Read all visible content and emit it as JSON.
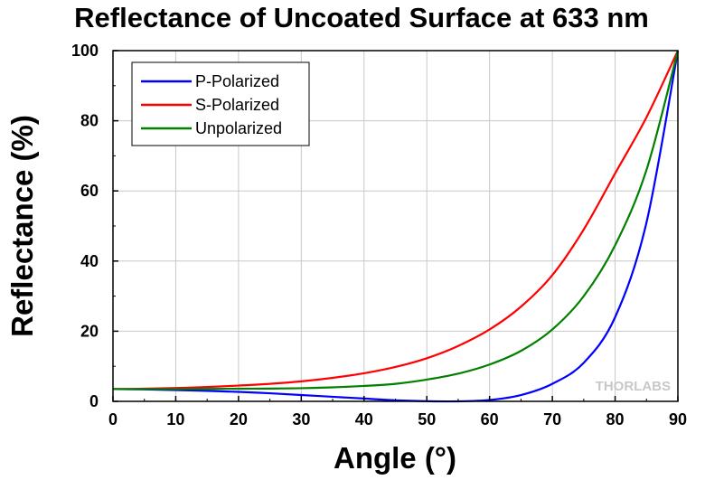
{
  "chart_data": {
    "type": "line",
    "title": "Reflectance of Uncoated Surface at 633 nm",
    "xlabel": "Angle (°)",
    "ylabel": "Reflectance (%)",
    "xlim": [
      0,
      90
    ],
    "ylim": [
      0,
      100
    ],
    "xticks": [
      0,
      10,
      20,
      30,
      40,
      50,
      60,
      70,
      80,
      90
    ],
    "yticks": [
      0,
      20,
      40,
      60,
      80,
      100
    ],
    "grid": true,
    "legend_position": "top-left",
    "x": [
      0,
      5,
      10,
      15,
      20,
      25,
      30,
      35,
      40,
      45,
      50,
      55,
      60,
      65,
      70,
      75,
      80,
      85,
      90
    ],
    "series": [
      {
        "name": "P-Polarized",
        "color": "#0000ff",
        "values": [
          3.5,
          3.4,
          3.2,
          3.0,
          2.7,
          2.3,
          1.8,
          1.3,
          0.8,
          0.3,
          0.05,
          0.0,
          0.4,
          1.8,
          5.0,
          11.0,
          24.0,
          51.0,
          100
        ]
      },
      {
        "name": "S-Polarized",
        "color": "#ff0000",
        "values": [
          3.5,
          3.6,
          3.8,
          4.1,
          4.5,
          5.0,
          5.7,
          6.7,
          8.0,
          9.8,
          12.3,
          15.8,
          20.5,
          27.0,
          36.0,
          49.0,
          65.0,
          81.0,
          100
        ]
      },
      {
        "name": "Unpolarized",
        "color": "#008000",
        "values": [
          3.5,
          3.5,
          3.5,
          3.55,
          3.6,
          3.65,
          3.75,
          4.0,
          4.4,
          5.0,
          6.2,
          7.9,
          10.5,
          14.4,
          20.5,
          30.0,
          44.5,
          66.0,
          100
        ]
      }
    ]
  },
  "watermark": "THORLABS"
}
